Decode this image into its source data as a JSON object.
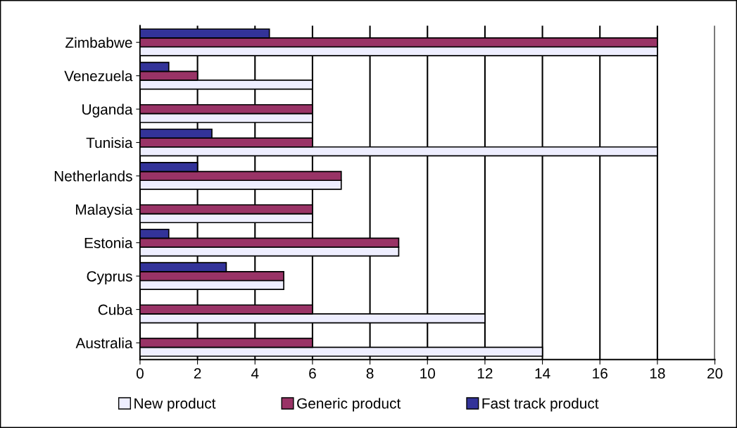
{
  "chart_data": {
    "type": "bar",
    "orientation": "horizontal",
    "categories": [
      "Zimbabwe",
      "Venezuela",
      "Uganda",
      "Tunisia",
      "Netherlands",
      "Malaysia",
      "Estonia",
      "Cyprus",
      "Cuba",
      "Australia"
    ],
    "series": [
      {
        "name": "New product",
        "color": "#eeeeff",
        "values": [
          18,
          6,
          6,
          18,
          7,
          6,
          9,
          5,
          12,
          14
        ]
      },
      {
        "name": "Generic product",
        "color": "#993366",
        "values": [
          18,
          2,
          6,
          6,
          7,
          6,
          9,
          5,
          6,
          6
        ]
      },
      {
        "name": "Fast track product",
        "color": "#333399",
        "values": [
          4.5,
          1,
          null,
          2.5,
          2,
          null,
          1,
          3,
          null,
          null
        ]
      }
    ],
    "xlim": [
      0,
      20
    ],
    "xticks": [
      0,
      2,
      4,
      6,
      8,
      10,
      12,
      14,
      16,
      18,
      20
    ],
    "grid": "x",
    "legend": "bottom"
  }
}
